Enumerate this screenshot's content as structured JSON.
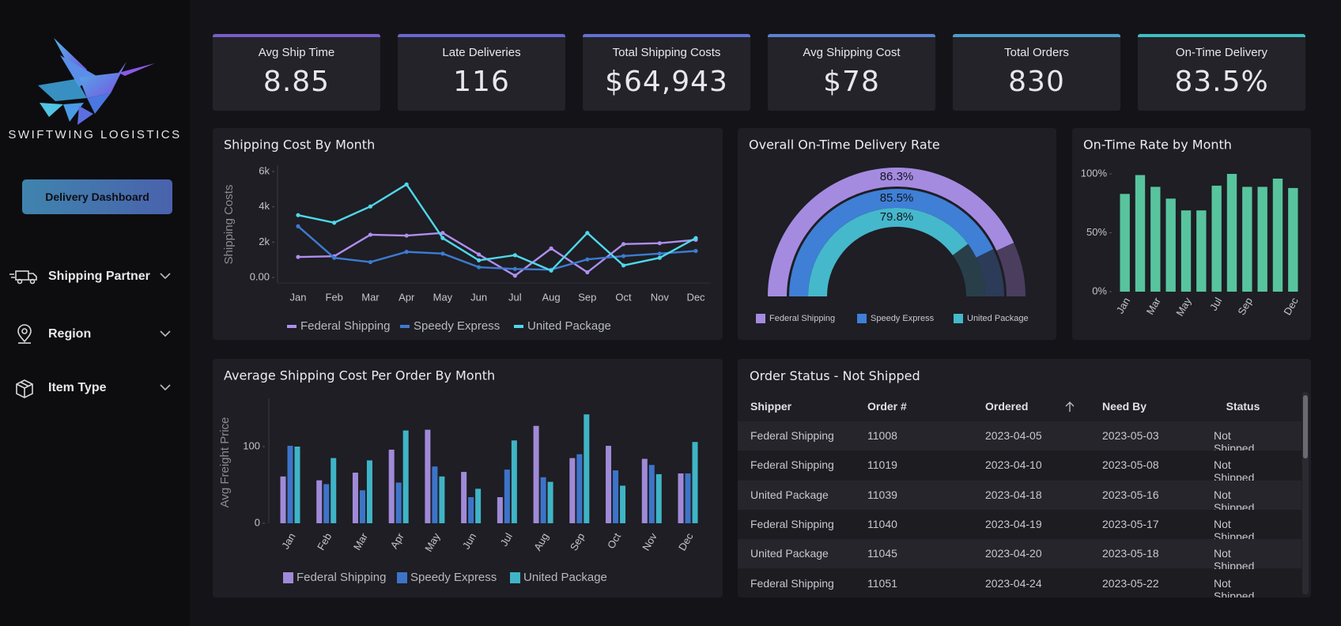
{
  "sidebar": {
    "brand": "SWIFTWING LOGISTICS",
    "button": "Delivery Dashboard",
    "filters": [
      "Shipping Partner",
      "Region",
      "Item Type"
    ]
  },
  "kpis": [
    {
      "label": "Avg Ship Time",
      "value": "8.85"
    },
    {
      "label": "Late Deliveries",
      "value": "116"
    },
    {
      "label": "Total Shipping Costs",
      "value": "$64,943"
    },
    {
      "label": "Avg Shipping Cost",
      "value": "$78"
    },
    {
      "label": "Total Orders",
      "value": "830"
    },
    {
      "label": "On-Time Delivery",
      "value": "83.5%"
    }
  ],
  "chart_data": [
    {
      "type": "line",
      "title": "Shipping Cost By Month",
      "y_label": "Shipping Costs",
      "categories": [
        "Jan",
        "Feb",
        "Mar",
        "Apr",
        "May",
        "Jun",
        "Jul",
        "Aug",
        "Sep",
        "Oct",
        "Nov",
        "Dec"
      ],
      "series": [
        {
          "name": "Federal Shipping",
          "color": "#b08ef0",
          "values": [
            1160,
            1200,
            2420,
            2370,
            2520,
            1300,
            100,
            1640,
            290,
            1890,
            1940,
            2130
          ]
        },
        {
          "name": "Speedy Express",
          "color": "#3d7bd1",
          "values": [
            2900,
            1110,
            870,
            1450,
            1350,
            580,
            480,
            440,
            1020,
            1210,
            1350,
            1500
          ]
        },
        {
          "name": "United Package",
          "color": "#4fd8ea",
          "values": [
            3530,
            3100,
            4020,
            5270,
            2230,
            970,
            1260,
            390,
            2520,
            680,
            1110,
            2230
          ]
        }
      ],
      "ylim": [
        0,
        6000
      ],
      "yticks": [
        {
          "value": 0,
          "label": "0.00"
        },
        {
          "value": 2000,
          "label": "2k"
        },
        {
          "value": 4000,
          "label": "4k"
        },
        {
          "value": 6000,
          "label": "6k"
        }
      ]
    },
    {
      "type": "gauge",
      "title": "Overall On-Time Delivery Rate",
      "categories": [
        "Federal Shipping",
        "Speedy Express",
        "United Package"
      ],
      "values": [
        86.3,
        85.5,
        79.8
      ],
      "value_labels": [
        "86.3%",
        "85.5%",
        "79.8%"
      ],
      "colors": [
        "#a48be0",
        "#3f7fd6",
        "#45b8cc"
      ],
      "ylim": [
        0,
        100
      ]
    },
    {
      "type": "bar",
      "title": "On-Time Rate by Month",
      "categories": [
        "Jan",
        null,
        "Mar",
        null,
        "May",
        null,
        "Jul",
        null,
        "Sep",
        null,
        null,
        "Dec"
      ],
      "values": [
        83,
        99,
        89,
        79,
        69,
        69,
        90,
        100,
        89,
        89,
        96,
        88
      ],
      "color": "#58c49e",
      "ylim": [
        0,
        100
      ],
      "yticks": [
        {
          "value": 0,
          "label": "0%"
        },
        {
          "value": 50,
          "label": "50%"
        },
        {
          "value": 100,
          "label": "100%"
        }
      ]
    },
    {
      "type": "bar",
      "title": "Average Shipping Cost Per Order By Month",
      "y_label": "Avg Freight Price",
      "categories": [
        "Jan",
        "Feb",
        "Mar",
        "Apr",
        "May",
        "Jun",
        "Jul",
        "Aug",
        "Sep",
        "Oct",
        "Nov",
        "Dec"
      ],
      "series": [
        {
          "name": "Federal Shipping",
          "color": "#a08ad8",
          "values": [
            61,
            56,
            66,
            96,
            122,
            67,
            34,
            127,
            85,
            101,
            84,
            65
          ]
        },
        {
          "name": "Speedy Express",
          "color": "#3d74c8",
          "values": [
            101,
            51,
            43,
            53,
            74,
            34,
            70,
            60,
            90,
            69,
            76,
            65
          ]
        },
        {
          "name": "United Package",
          "color": "#3fb4c6",
          "values": [
            100,
            85,
            82,
            121,
            61,
            45,
            108,
            54,
            142,
            49,
            64,
            106
          ]
        }
      ],
      "ylim": [
        0,
        160
      ],
      "yticks": [
        0,
        100
      ]
    }
  ],
  "table": {
    "title": "Order Status - Not Shipped",
    "headers": [
      "Shipper",
      "Order #",
      "Ordered",
      "Need By",
      "Status"
    ],
    "rows": [
      [
        "Federal Shipping",
        "11008",
        "2023-04-05",
        "2023-05-03",
        "Not Shipped"
      ],
      [
        "Federal Shipping",
        "11019",
        "2023-04-10",
        "2023-05-08",
        "Not Shipped"
      ],
      [
        "United Package",
        "11039",
        "2023-04-18",
        "2023-05-16",
        "Not Shipped"
      ],
      [
        "Federal Shipping",
        "11040",
        "2023-04-19",
        "2023-05-17",
        "Not Shipped"
      ],
      [
        "United Package",
        "11045",
        "2023-04-20",
        "2023-05-18",
        "Not Shipped"
      ],
      [
        "Federal Shipping",
        "11051",
        "2023-04-24",
        "2023-05-22",
        "Not Shipped"
      ]
    ]
  }
}
